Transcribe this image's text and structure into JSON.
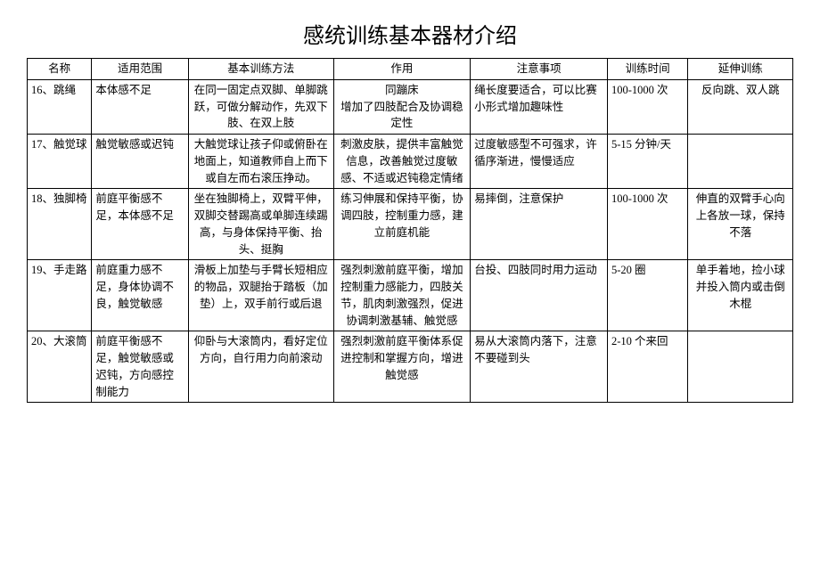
{
  "title": "感统训练基本器材介绍",
  "columns": [
    "名称",
    "适用范围",
    "基本训练方法",
    "作用",
    "注意事项",
    "训练时间",
    "延伸训练"
  ],
  "rows": [
    {
      "name": "16、跳绳",
      "scope": "本体感不足",
      "method": "在同一固定点双脚、单脚跳跃，可做分解动作，先双下肢、在双上肢",
      "effect": "同蹦床\n增加了四肢配合及协调稳定性",
      "note": "绳长度要适合，可以比赛小形式增加趣味性",
      "time": "100-1000 次",
      "ext": "反向跳、双人跳"
    },
    {
      "name": "17、触觉球",
      "scope": "触觉敏感或迟钝",
      "method": "大触觉球让孩子仰或俯卧在地面上，知道教师自上而下或自左而右滚压挣动。",
      "effect": "刺激皮肤，提供丰富触觉信息，改善触觉过度敏感、不适或迟钝稳定情绪",
      "note": "过度敏感型不可强求，许循序渐进，慢慢适应",
      "time": "5-15 分钟/天",
      "ext": ""
    },
    {
      "name": "18、独脚椅",
      "scope": "前庭平衡感不足，本体感不足",
      "method": "坐在独脚椅上，双臂平伸，双脚交替踢高或单脚连续踢高，与身体保持平衡、抬头、挺胸",
      "effect": "练习伸展和保持平衡，协调四肢，控制重力感，建立前庭机能",
      "note": "易摔倒，注意保护",
      "time": "100-1000 次",
      "ext": "伸直的双臂手心向上各放一球，保持不落"
    },
    {
      "name": "19、手走路",
      "scope": "前庭重力感不足，身体协调不良，触觉敏感",
      "method": "滑板上加垫与手臂长短相应的物品，双腿抬于踏板（加垫）上，双手前行或后退",
      "effect": "强烈刺激前庭平衡，增加控制重力感能力，四肢关节，肌肉刺激强烈，促进协调刺激基辅、触觉感",
      "note": "台投、四肢同时用力运动",
      "time": "5-20 圈",
      "ext": "单手着地，捡小球并投入筒内或击倒木棍"
    },
    {
      "name": "20、大滚筒",
      "scope": "前庭平衡感不足，触觉敏感或迟钝，方向感控制能力",
      "method": "仰卧与大滚筒内，看好定位方向，自行用力向前滚动",
      "effect": "强烈刺激前庭平衡体系促进控制和掌握方向，增进触觉感",
      "note": "易从大滚筒内落下，注意不要碰到头",
      "time": "2-10 个来回",
      "ext": ""
    }
  ]
}
